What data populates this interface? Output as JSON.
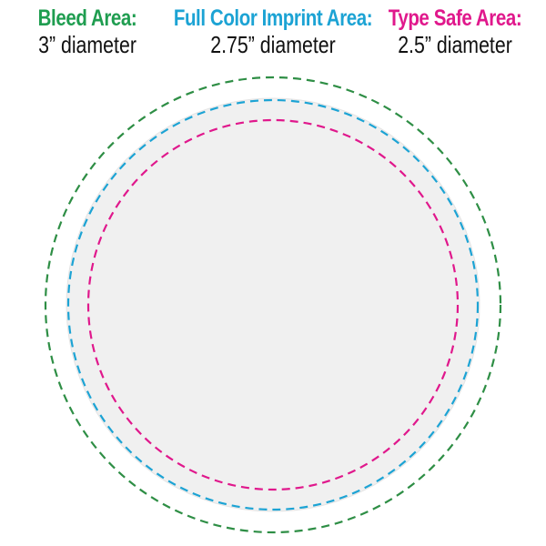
{
  "labels": [
    {
      "title": "Bleed Area:",
      "desc": "3” diameter",
      "color": "#1f9d50"
    },
    {
      "title": "Full Color Imprint Area:",
      "desc": "2.75” diameter",
      "color": "#1ca3d4"
    },
    {
      "title": "Type Safe Area:",
      "desc": "2.5” diameter",
      "color": "#e0188c"
    }
  ],
  "circles": {
    "bleed_color": "#2e8e45",
    "imprint_color": "#1ca3d4",
    "safe_color": "#e0188c",
    "fill_color": "#f0f0f0"
  }
}
